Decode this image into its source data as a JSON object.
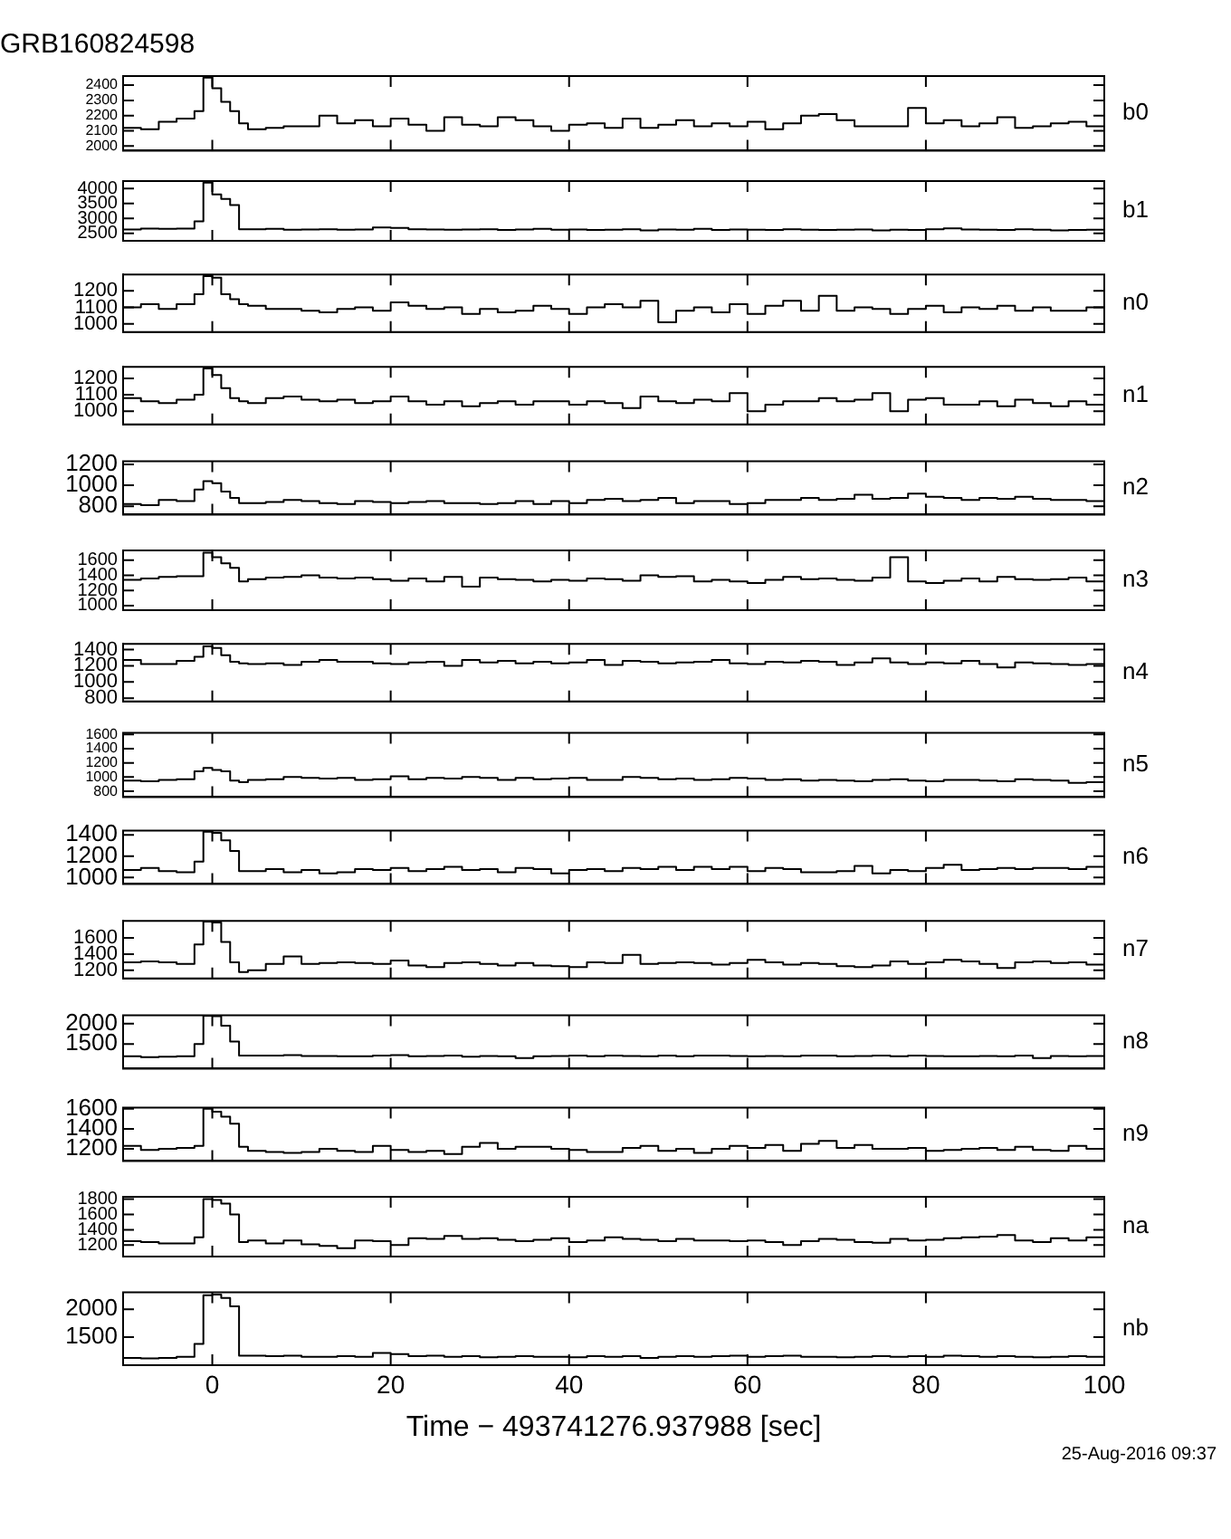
{
  "chart_data": [
    {
      "type": "step",
      "title": "GRB160824598",
      "x": [
        -10,
        -8,
        -6,
        -4,
        -2,
        -1,
        0,
        1,
        2,
        3,
        4,
        6,
        8,
        10,
        12,
        14,
        16,
        18,
        20,
        22,
        24,
        26,
        28,
        30,
        32,
        34,
        36,
        38,
        40,
        42,
        44,
        46,
        48,
        50,
        52,
        54,
        56,
        58,
        60,
        62,
        64,
        66,
        68,
        70,
        72,
        74,
        76,
        78,
        80,
        82,
        84,
        86,
        88,
        90,
        92,
        94,
        96,
        98,
        100
      ],
      "xlim": [
        -10,
        100
      ],
      "xticks": [
        0,
        20,
        40,
        60,
        80,
        100
      ],
      "ylim": [
        1970,
        2460
      ],
      "yticks": [
        2000,
        2100,
        2200,
        2300,
        2400
      ],
      "tick_labels": "y",
      "series": [
        {
          "name": "b0",
          "color": "#000000",
          "values": [
            2130,
            2120,
            2110,
            2160,
            2180,
            2230,
            2450,
            2380,
            2290,
            2230,
            2150,
            2110,
            2120,
            2130,
            2130,
            2200,
            2150,
            2170,
            2130,
            2180,
            2140,
            2100,
            2190,
            2140,
            2130,
            2190,
            2170,
            2130,
            2100,
            2140,
            2150,
            2120,
            2180,
            2120,
            2140,
            2170,
            2130,
            2150,
            2130,
            2160,
            2110,
            2150,
            2200,
            2210,
            2170,
            2130,
            2130,
            2130,
            2250,
            2150,
            2170,
            2130,
            2150,
            2190,
            2120,
            2130,
            2150,
            2160,
            2130
          ]
        }
      ]
    },
    {
      "type": "step",
      "x": [
        -10,
        -8,
        -6,
        -4,
        -2,
        -1,
        0,
        1,
        2,
        3,
        4,
        6,
        8,
        10,
        12,
        14,
        16,
        18,
        20,
        22,
        24,
        26,
        28,
        30,
        32,
        34,
        36,
        38,
        40,
        42,
        44,
        46,
        48,
        50,
        52,
        54,
        56,
        58,
        60,
        62,
        64,
        66,
        68,
        70,
        72,
        74,
        76,
        78,
        80,
        82,
        84,
        86,
        88,
        90,
        92,
        94,
        96,
        98,
        100
      ],
      "xlim": [
        -10,
        100
      ],
      "xticks": [
        0,
        20,
        40,
        60,
        80,
        100
      ],
      "ylim": [
        2250,
        4250
      ],
      "yticks": [
        2500,
        3000,
        3500,
        4000
      ],
      "tick_labels": "y",
      "series": [
        {
          "name": "b1",
          "color": "#000000",
          "values": [
            2650,
            2630,
            2660,
            2650,
            2660,
            2900,
            4200,
            3800,
            3650,
            3450,
            2640,
            2640,
            2650,
            2620,
            2630,
            2640,
            2620,
            2630,
            2700,
            2680,
            2640,
            2630,
            2620,
            2630,
            2640,
            2610,
            2630,
            2650,
            2620,
            2630,
            2610,
            2620,
            2640,
            2600,
            2630,
            2620,
            2650,
            2610,
            2630,
            2620,
            2610,
            2640,
            2620,
            2610,
            2620,
            2630,
            2600,
            2620,
            2610,
            2640,
            2670,
            2630,
            2620,
            2610,
            2640,
            2620,
            2600,
            2610,
            2620
          ]
        }
      ]
    },
    {
      "type": "step",
      "x": [
        -10,
        -8,
        -6,
        -4,
        -2,
        -1,
        0,
        1,
        2,
        3,
        4,
        6,
        8,
        10,
        12,
        14,
        16,
        18,
        20,
        22,
        24,
        26,
        28,
        30,
        32,
        34,
        36,
        38,
        40,
        42,
        44,
        46,
        48,
        50,
        52,
        54,
        56,
        58,
        60,
        62,
        64,
        66,
        68,
        70,
        72,
        74,
        76,
        78,
        80,
        82,
        84,
        86,
        88,
        90,
        92,
        94,
        96,
        98,
        100
      ],
      "xlim": [
        -10,
        100
      ],
      "xticks": [
        0,
        20,
        40,
        60,
        80,
        100
      ],
      "ylim": [
        950,
        1300
      ],
      "yticks": [
        1000,
        1100,
        1200
      ],
      "tick_labels": "y",
      "series": [
        {
          "name": "n0",
          "color": "#000000",
          "values": [
            1080,
            1100,
            1120,
            1090,
            1120,
            1180,
            1290,
            1280,
            1180,
            1150,
            1120,
            1110,
            1090,
            1090,
            1080,
            1070,
            1090,
            1100,
            1080,
            1130,
            1110,
            1090,
            1100,
            1060,
            1090,
            1070,
            1080,
            1110,
            1090,
            1060,
            1100,
            1120,
            1100,
            1140,
            1010,
            1080,
            1100,
            1070,
            1120,
            1060,
            1110,
            1140,
            1080,
            1170,
            1080,
            1100,
            1090,
            1060,
            1090,
            1110,
            1070,
            1100,
            1090,
            1110,
            1080,
            1100,
            1080,
            1080,
            1100
          ]
        }
      ]
    },
    {
      "type": "step",
      "x": [
        -10,
        -8,
        -6,
        -4,
        -2,
        -1,
        0,
        1,
        2,
        3,
        4,
        6,
        8,
        10,
        12,
        14,
        16,
        18,
        20,
        22,
        24,
        26,
        28,
        30,
        32,
        34,
        36,
        38,
        40,
        42,
        44,
        46,
        48,
        50,
        52,
        54,
        56,
        58,
        60,
        62,
        64,
        66,
        68,
        70,
        72,
        74,
        76,
        78,
        80,
        82,
        84,
        86,
        88,
        90,
        92,
        94,
        96,
        98,
        100
      ],
      "xlim": [
        -10,
        100
      ],
      "xticks": [
        0,
        20,
        40,
        60,
        80,
        100
      ],
      "ylim": [
        920,
        1270
      ],
      "yticks": [
        1000,
        1100,
        1200
      ],
      "tick_labels": "y",
      "series": [
        {
          "name": "n1",
          "color": "#000000",
          "values": [
            1050,
            1080,
            1060,
            1050,
            1070,
            1100,
            1260,
            1220,
            1140,
            1080,
            1060,
            1050,
            1080,
            1090,
            1070,
            1060,
            1070,
            1050,
            1060,
            1090,
            1060,
            1040,
            1060,
            1030,
            1050,
            1060,
            1040,
            1060,
            1060,
            1040,
            1060,
            1050,
            1020,
            1090,
            1060,
            1050,
            1070,
            1060,
            1110,
            1000,
            1040,
            1060,
            1060,
            1080,
            1060,
            1070,
            1110,
            1000,
            1070,
            1080,
            1040,
            1040,
            1060,
            1030,
            1070,
            1050,
            1030,
            1060,
            1040
          ]
        }
      ]
    },
    {
      "type": "step",
      "x": [
        -10,
        -8,
        -6,
        -4,
        -2,
        -1,
        0,
        1,
        2,
        3,
        4,
        6,
        8,
        10,
        12,
        14,
        16,
        18,
        20,
        22,
        24,
        26,
        28,
        30,
        32,
        34,
        36,
        38,
        40,
        42,
        44,
        46,
        48,
        50,
        52,
        54,
        56,
        58,
        60,
        62,
        64,
        66,
        68,
        70,
        72,
        74,
        76,
        78,
        80,
        82,
        84,
        86,
        88,
        90,
        92,
        94,
        96,
        98,
        100
      ],
      "xlim": [
        -10,
        100
      ],
      "xticks": [
        0,
        20,
        40,
        60,
        80,
        100
      ],
      "ylim": [
        720,
        1230
      ],
      "yticks": [
        800,
        1000,
        1200
      ],
      "tick_labels": "y",
      "series": [
        {
          "name": "n2",
          "color": "#000000",
          "values": [
            820,
            820,
            810,
            860,
            850,
            960,
            1040,
            1020,
            940,
            880,
            830,
            830,
            840,
            860,
            850,
            830,
            820,
            850,
            840,
            830,
            840,
            850,
            830,
            830,
            820,
            830,
            850,
            820,
            850,
            830,
            860,
            870,
            850,
            860,
            880,
            830,
            850,
            850,
            820,
            830,
            860,
            860,
            880,
            860,
            870,
            910,
            870,
            880,
            920,
            890,
            880,
            860,
            880,
            870,
            890,
            870,
            860,
            860,
            850
          ]
        }
      ]
    },
    {
      "type": "step",
      "x": [
        -10,
        -8,
        -6,
        -4,
        -2,
        -1,
        0,
        1,
        2,
        3,
        4,
        6,
        8,
        10,
        12,
        14,
        16,
        18,
        20,
        22,
        24,
        26,
        28,
        30,
        32,
        34,
        36,
        38,
        40,
        42,
        44,
        46,
        48,
        50,
        52,
        54,
        56,
        58,
        60,
        62,
        64,
        66,
        68,
        70,
        72,
        74,
        76,
        78,
        80,
        82,
        84,
        86,
        88,
        90,
        92,
        94,
        96,
        98,
        100
      ],
      "xlim": [
        -10,
        100
      ],
      "xticks": [
        0,
        20,
        40,
        60,
        80,
        100
      ],
      "ylim": [
        940,
        1730
      ],
      "yticks": [
        1000,
        1200,
        1400,
        1600
      ],
      "tick_labels": "y",
      "series": [
        {
          "name": "n3",
          "color": "#000000",
          "values": [
            1330,
            1340,
            1360,
            1380,
            1390,
            1390,
            1700,
            1640,
            1560,
            1500,
            1320,
            1350,
            1370,
            1380,
            1400,
            1370,
            1360,
            1370,
            1350,
            1330,
            1360,
            1320,
            1380,
            1250,
            1370,
            1350,
            1340,
            1320,
            1340,
            1330,
            1360,
            1350,
            1330,
            1400,
            1380,
            1390,
            1320,
            1340,
            1320,
            1300,
            1340,
            1380,
            1350,
            1360,
            1340,
            1330,
            1370,
            1640,
            1320,
            1300,
            1330,
            1360,
            1320,
            1380,
            1350,
            1340,
            1350,
            1370,
            1320
          ]
        }
      ]
    },
    {
      "type": "step",
      "x": [
        -10,
        -8,
        -6,
        -4,
        -2,
        -1,
        0,
        1,
        2,
        3,
        4,
        6,
        8,
        10,
        12,
        14,
        16,
        18,
        20,
        22,
        24,
        26,
        28,
        30,
        32,
        34,
        36,
        38,
        40,
        42,
        44,
        46,
        48,
        50,
        52,
        54,
        56,
        58,
        60,
        62,
        64,
        66,
        68,
        70,
        72,
        74,
        76,
        78,
        80,
        82,
        84,
        86,
        88,
        90,
        92,
        94,
        96,
        98,
        100
      ],
      "xlim": [
        -10,
        100
      ],
      "xticks": [
        0,
        20,
        40,
        60,
        80,
        100
      ],
      "ylim": [
        760,
        1470
      ],
      "yticks": [
        800,
        1000,
        1200,
        1400
      ],
      "tick_labels": "y",
      "series": [
        {
          "name": "n4",
          "color": "#000000",
          "values": [
            1200,
            1270,
            1220,
            1220,
            1260,
            1310,
            1440,
            1420,
            1330,
            1250,
            1230,
            1220,
            1230,
            1210,
            1250,
            1270,
            1250,
            1250,
            1230,
            1220,
            1240,
            1250,
            1200,
            1270,
            1240,
            1260,
            1230,
            1250,
            1230,
            1240,
            1270,
            1210,
            1260,
            1250,
            1230,
            1240,
            1250,
            1270,
            1230,
            1220,
            1250,
            1240,
            1260,
            1250,
            1210,
            1240,
            1290,
            1240,
            1220,
            1240,
            1230,
            1260,
            1220,
            1180,
            1240,
            1230,
            1220,
            1210,
            1220
          ]
        }
      ]
    },
    {
      "type": "step",
      "x": [
        -10,
        -8,
        -6,
        -4,
        -2,
        -1,
        0,
        1,
        2,
        3,
        4,
        6,
        8,
        10,
        12,
        14,
        16,
        18,
        20,
        22,
        24,
        26,
        28,
        30,
        32,
        34,
        36,
        38,
        40,
        42,
        44,
        46,
        48,
        50,
        52,
        54,
        56,
        58,
        60,
        62,
        64,
        66,
        68,
        70,
        72,
        74,
        76,
        78,
        80,
        82,
        84,
        86,
        88,
        90,
        92,
        94,
        96,
        98,
        100
      ],
      "xlim": [
        -10,
        100
      ],
      "xticks": [
        0,
        20,
        40,
        60,
        80,
        100
      ],
      "ylim": [
        720,
        1620
      ],
      "yticks": [
        800,
        1000,
        1200,
        1400,
        1600
      ],
      "tick_labels": "y",
      "series": [
        {
          "name": "n5",
          "color": "#000000",
          "values": [
            940,
            950,
            940,
            960,
            970,
            1080,
            1130,
            1100,
            1080,
            950,
            930,
            960,
            970,
            1000,
            990,
            980,
            990,
            960,
            970,
            1010,
            970,
            990,
            980,
            1000,
            990,
            960,
            990,
            970,
            980,
            990,
            960,
            960,
            1000,
            990,
            970,
            980,
            960,
            970,
            990,
            980,
            960,
            970,
            950,
            960,
            950,
            940,
            960,
            970,
            950,
            940,
            960,
            960,
            950,
            940,
            970,
            960,
            950,
            920,
            930
          ]
        }
      ]
    },
    {
      "type": "step",
      "x": [
        -10,
        -8,
        -6,
        -4,
        -2,
        -1,
        0,
        1,
        2,
        3,
        4,
        6,
        8,
        10,
        12,
        14,
        16,
        18,
        20,
        22,
        24,
        26,
        28,
        30,
        32,
        34,
        36,
        38,
        40,
        42,
        44,
        46,
        48,
        50,
        52,
        54,
        56,
        58,
        60,
        62,
        64,
        66,
        68,
        70,
        72,
        74,
        76,
        78,
        80,
        82,
        84,
        86,
        88,
        90,
        92,
        94,
        96,
        98,
        100
      ],
      "xlim": [
        -10,
        100
      ],
      "xticks": [
        0,
        20,
        40,
        60,
        80,
        100
      ],
      "ylim": [
        940,
        1440
      ],
      "yticks": [
        1000,
        1200,
        1400
      ],
      "tick_labels": "y",
      "series": [
        {
          "name": "n6",
          "color": "#000000",
          "values": [
            1000,
            1070,
            1090,
            1060,
            1050,
            1150,
            1430,
            1420,
            1350,
            1250,
            1060,
            1060,
            1080,
            1050,
            1070,
            1040,
            1050,
            1080,
            1070,
            1090,
            1060,
            1080,
            1100,
            1070,
            1080,
            1050,
            1090,
            1080,
            1040,
            1070,
            1080,
            1060,
            1090,
            1080,
            1100,
            1070,
            1100,
            1080,
            1100,
            1060,
            1090,
            1080,
            1050,
            1050,
            1060,
            1110,
            1040,
            1070,
            1060,
            1090,
            1120,
            1070,
            1080,
            1090,
            1080,
            1090,
            1090,
            1080,
            1100
          ]
        }
      ]
    },
    {
      "type": "step",
      "x": [
        -10,
        -8,
        -6,
        -4,
        -2,
        -1,
        0,
        1,
        2,
        3,
        4,
        6,
        8,
        10,
        12,
        14,
        16,
        18,
        20,
        22,
        24,
        26,
        28,
        30,
        32,
        34,
        36,
        38,
        40,
        42,
        44,
        46,
        48,
        50,
        52,
        54,
        56,
        58,
        60,
        62,
        64,
        66,
        68,
        70,
        72,
        74,
        76,
        78,
        80,
        82,
        84,
        86,
        88,
        90,
        92,
        94,
        96,
        98,
        100
      ],
      "xlim": [
        -10,
        100
      ],
      "xticks": [
        0,
        20,
        40,
        60,
        80,
        100
      ],
      "ylim": [
        1100,
        1810
      ],
      "yticks": [
        1200,
        1400,
        1600
      ],
      "tick_labels": "y",
      "series": [
        {
          "name": "n7",
          "color": "#000000",
          "values": [
            1280,
            1300,
            1310,
            1300,
            1280,
            1520,
            1800,
            1790,
            1550,
            1300,
            1180,
            1200,
            1280,
            1370,
            1280,
            1290,
            1300,
            1290,
            1280,
            1320,
            1260,
            1240,
            1290,
            1300,
            1280,
            1260,
            1290,
            1260,
            1250,
            1240,
            1300,
            1290,
            1390,
            1280,
            1290,
            1300,
            1290,
            1270,
            1290,
            1330,
            1300,
            1270,
            1290,
            1280,
            1250,
            1240,
            1260,
            1310,
            1280,
            1300,
            1330,
            1310,
            1280,
            1230,
            1300,
            1310,
            1290,
            1300,
            1270
          ]
        }
      ]
    },
    {
      "type": "step",
      "x": [
        -10,
        -8,
        -6,
        -4,
        -2,
        -1,
        0,
        1,
        2,
        3,
        4,
        6,
        8,
        10,
        12,
        14,
        16,
        18,
        20,
        22,
        24,
        26,
        28,
        30,
        32,
        34,
        36,
        38,
        40,
        42,
        44,
        46,
        48,
        50,
        52,
        54,
        56,
        58,
        60,
        62,
        64,
        66,
        68,
        70,
        72,
        74,
        76,
        78,
        80,
        82,
        84,
        86,
        88,
        90,
        92,
        94,
        96,
        98,
        100
      ],
      "xlim": [
        -10,
        100
      ],
      "xticks": [
        0,
        20,
        40,
        60,
        80,
        100
      ],
      "ylim": [
        900,
        2200
      ],
      "yticks": [
        1500,
        2000
      ],
      "tick_labels": "y",
      "series": [
        {
          "name": "n8",
          "color": "#000000",
          "values": [
            1180,
            1200,
            1180,
            1190,
            1200,
            1500,
            2190,
            2180,
            1950,
            1560,
            1220,
            1220,
            1220,
            1230,
            1210,
            1210,
            1200,
            1200,
            1220,
            1230,
            1200,
            1210,
            1220,
            1190,
            1210,
            1200,
            1160,
            1200,
            1210,
            1220,
            1200,
            1220,
            1210,
            1200,
            1220,
            1200,
            1220,
            1220,
            1210,
            1200,
            1210,
            1200,
            1220,
            1220,
            1200,
            1210,
            1220,
            1200,
            1220,
            1210,
            1200,
            1200,
            1210,
            1200,
            1220,
            1160,
            1210,
            1200,
            1210
          ]
        }
      ]
    },
    {
      "type": "step",
      "x": [
        -10,
        -8,
        -6,
        -4,
        -2,
        -1,
        0,
        1,
        2,
        3,
        4,
        6,
        8,
        10,
        12,
        14,
        16,
        18,
        20,
        22,
        24,
        26,
        28,
        30,
        32,
        34,
        36,
        38,
        40,
        42,
        44,
        46,
        48,
        50,
        52,
        54,
        56,
        58,
        60,
        62,
        64,
        66,
        68,
        70,
        72,
        74,
        76,
        78,
        80,
        82,
        84,
        86,
        88,
        90,
        92,
        94,
        96,
        98,
        100
      ],
      "xlim": [
        -10,
        100
      ],
      "xticks": [
        0,
        20,
        40,
        60,
        80,
        100
      ],
      "ylim": [
        1080,
        1610
      ],
      "yticks": [
        1200,
        1400,
        1600
      ],
      "tick_labels": "y",
      "series": [
        {
          "name": "n9",
          "color": "#000000",
          "values": [
            1180,
            1230,
            1190,
            1200,
            1210,
            1230,
            1600,
            1570,
            1520,
            1450,
            1220,
            1180,
            1170,
            1160,
            1170,
            1200,
            1180,
            1170,
            1230,
            1190,
            1170,
            1180,
            1150,
            1220,
            1260,
            1200,
            1220,
            1220,
            1200,
            1190,
            1170,
            1170,
            1210,
            1230,
            1180,
            1200,
            1160,
            1200,
            1230,
            1210,
            1240,
            1180,
            1250,
            1280,
            1210,
            1240,
            1200,
            1200,
            1210,
            1180,
            1190,
            1200,
            1210,
            1190,
            1220,
            1190,
            1180,
            1230,
            1200
          ]
        }
      ]
    },
    {
      "type": "step",
      "x": [
        -10,
        -8,
        -6,
        -4,
        -2,
        -1,
        0,
        1,
        2,
        3,
        4,
        6,
        8,
        10,
        12,
        14,
        16,
        18,
        20,
        22,
        24,
        26,
        28,
        30,
        32,
        34,
        36,
        38,
        40,
        42,
        44,
        46,
        48,
        50,
        52,
        54,
        56,
        58,
        60,
        62,
        64,
        66,
        68,
        70,
        72,
        74,
        76,
        78,
        80,
        82,
        84,
        86,
        88,
        90,
        92,
        94,
        96,
        98,
        100
      ],
      "xlim": [
        -10,
        100
      ],
      "xticks": [
        0,
        20,
        40,
        60,
        80,
        100
      ],
      "ylim": [
        1050,
        1830
      ],
      "yticks": [
        1200,
        1400,
        1600,
        1800
      ],
      "tick_labels": "y",
      "series": [
        {
          "name": "na",
          "color": "#000000",
          "values": [
            1230,
            1250,
            1240,
            1220,
            1220,
            1300,
            1800,
            1790,
            1740,
            1600,
            1240,
            1260,
            1220,
            1260,
            1210,
            1190,
            1160,
            1260,
            1250,
            1200,
            1290,
            1280,
            1320,
            1280,
            1290,
            1270,
            1250,
            1270,
            1290,
            1240,
            1260,
            1300,
            1280,
            1270,
            1250,
            1280,
            1260,
            1260,
            1250,
            1260,
            1240,
            1200,
            1250,
            1280,
            1270,
            1240,
            1230,
            1280,
            1260,
            1270,
            1290,
            1300,
            1310,
            1330,
            1260,
            1240,
            1290,
            1260,
            1300
          ]
        }
      ]
    },
    {
      "type": "step",
      "xlabel": "Time − 493741276.937988 [sec]",
      "annotations": [
        "25-Aug-2016 09:37"
      ],
      "x": [
        -10,
        -8,
        -6,
        -4,
        -2,
        -1,
        0,
        1,
        2,
        3,
        4,
        6,
        8,
        10,
        12,
        14,
        16,
        18,
        20,
        22,
        24,
        26,
        28,
        30,
        32,
        34,
        36,
        38,
        40,
        42,
        44,
        46,
        48,
        50,
        52,
        54,
        56,
        58,
        60,
        62,
        64,
        66,
        68,
        70,
        72,
        74,
        76,
        78,
        80,
        82,
        84,
        86,
        88,
        90,
        92,
        94,
        96,
        98,
        100
      ],
      "xlim": [
        -10,
        100
      ],
      "xticks": [
        0,
        20,
        40,
        60,
        80,
        100
      ],
      "ylim": [
        1000,
        2300
      ],
      "yticks": [
        1500,
        2000
      ],
      "series": [
        {
          "name": "nb",
          "color": "#000000",
          "values": [
            1140,
            1130,
            1120,
            1130,
            1150,
            1380,
            2250,
            2260,
            2200,
            2050,
            1170,
            1170,
            1160,
            1170,
            1150,
            1150,
            1160,
            1150,
            1220,
            1200,
            1160,
            1170,
            1150,
            1160,
            1140,
            1150,
            1160,
            1150,
            1150,
            1140,
            1160,
            1150,
            1160,
            1130,
            1150,
            1160,
            1150,
            1160,
            1170,
            1150,
            1160,
            1170,
            1150,
            1150,
            1140,
            1150,
            1160,
            1150,
            1160,
            1150,
            1170,
            1160,
            1150,
            1160,
            1150,
            1140,
            1150,
            1160,
            1150
          ]
        }
      ]
    }
  ]
}
